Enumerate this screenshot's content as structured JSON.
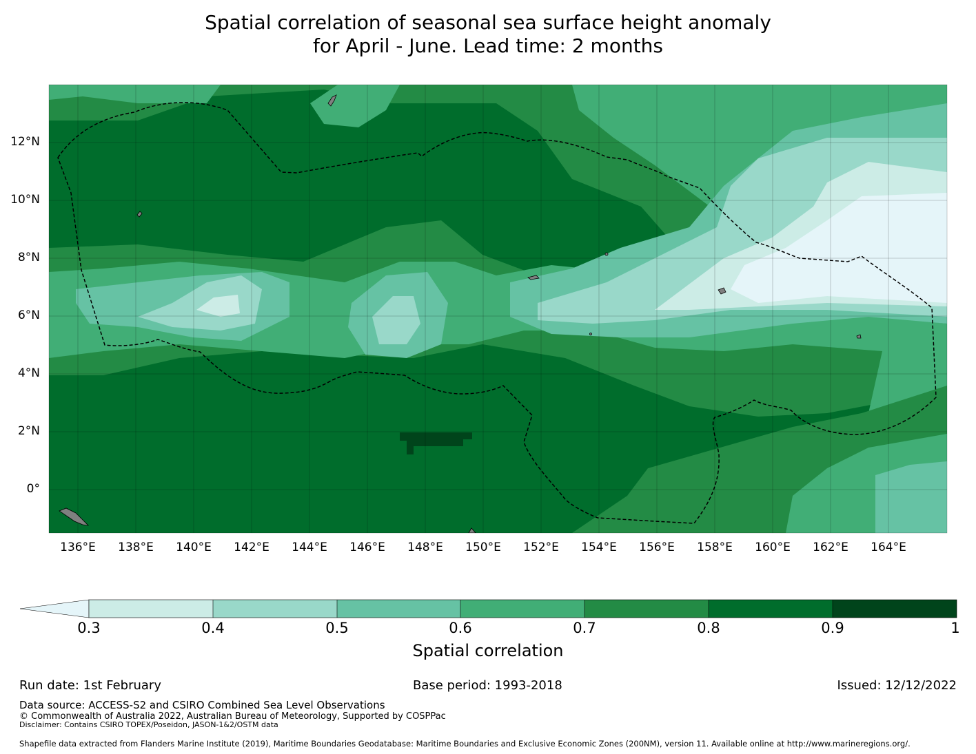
{
  "title_line1": "Spatial correlation of seasonal sea surface height anomaly",
  "title_line2": "for April - June. Lead time: 2 months",
  "map": {
    "lat_labels": [
      "12°N",
      "10°N",
      "8°N",
      "6°N",
      "4°N",
      "2°N",
      "0°"
    ],
    "lon_labels": [
      "136°E",
      "138°E",
      "140°E",
      "142°E",
      "144°E",
      "146°E",
      "148°E",
      "150°E",
      "152°E",
      "154°E",
      "156°E",
      "158°E",
      "160°E",
      "162°E",
      "164°E"
    ],
    "land_color": "#808080",
    "boundary_style": "dashed black line (EEZ)"
  },
  "colorbar": {
    "label": "Spatial correlation",
    "ticks": [
      "0.3",
      "0.4",
      "0.5",
      "0.6",
      "0.7",
      "0.8",
      "0.9",
      "1"
    ],
    "under_color": "#e5f5f9",
    "colors": [
      "#ccece6",
      "#99d8c9",
      "#66c2a4",
      "#41ae76",
      "#238b45",
      "#006d2c",
      "#00441b"
    ]
  },
  "footer": {
    "run_date": "Run date: 1st February",
    "base_period": "Base period: 1993-2018",
    "issued": "Issued: 12/12/2022",
    "data_source": "Data source: ACCESS-S2 and CSIRO Combined Sea Level Observations",
    "copyright": "© Commonwealth of Australia 2022, Australian Bureau of Meteorology, Supported by COSPPac",
    "disclaimer": "Disclaimer: Contains CSIRO TOPEX/Poseidon, JASON-1&2/OSTM data",
    "shapefile": "Shapefile data extracted from Flanders Marine Institute (2019), Maritime Boundaries Geodatabase: Maritime Boundaries and Exclusive Economic Zones (200NM), version 11. Available online at http://www.marineregions.org/."
  }
}
